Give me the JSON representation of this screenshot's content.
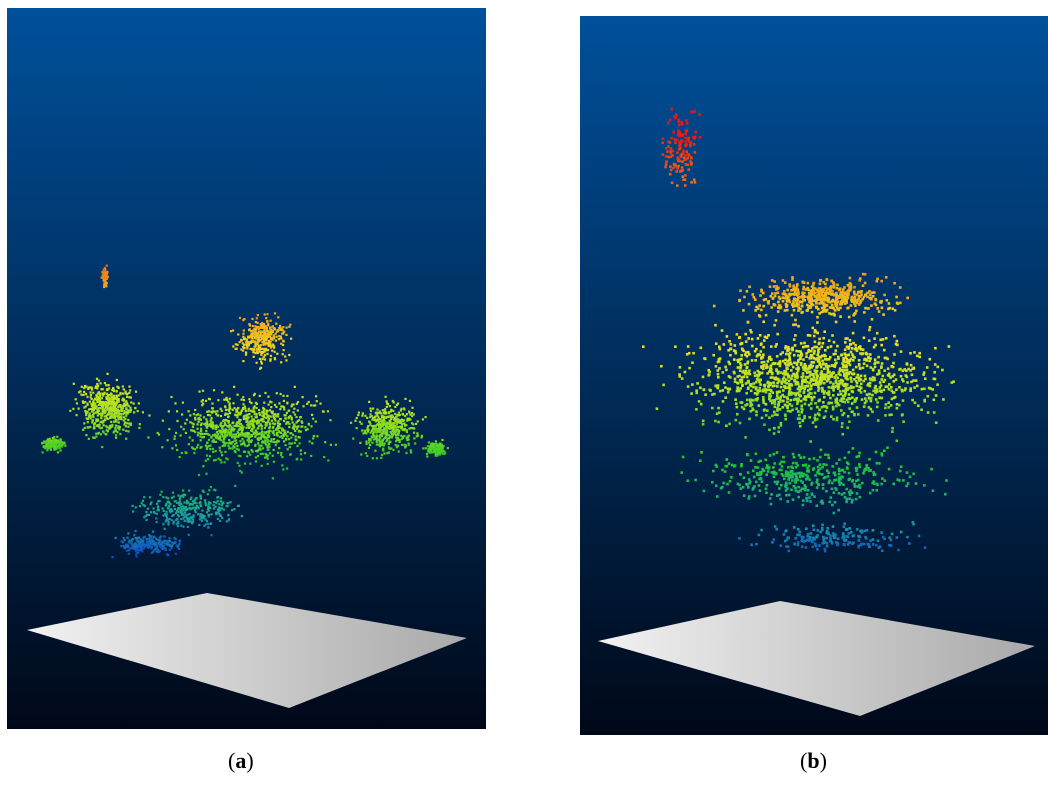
{
  "figure": {
    "panels": [
      {
        "id": "a",
        "caption_open": "(",
        "caption_letter": "a",
        "caption_close": ")"
      },
      {
        "id": "b",
        "caption_open": "(",
        "caption_letter": "b",
        "caption_close": ")"
      }
    ],
    "colors": {
      "background_top": "#00509b",
      "background_bottom": "#000818",
      "plane_light": "#f2f2f2",
      "plane_dark": "#a8a8a8",
      "colormap": [
        "#1030d0",
        "#1aa0a0",
        "#20c828",
        "#a8e020",
        "#f0e020",
        "#f0a018",
        "#e81818"
      ]
    }
  }
}
